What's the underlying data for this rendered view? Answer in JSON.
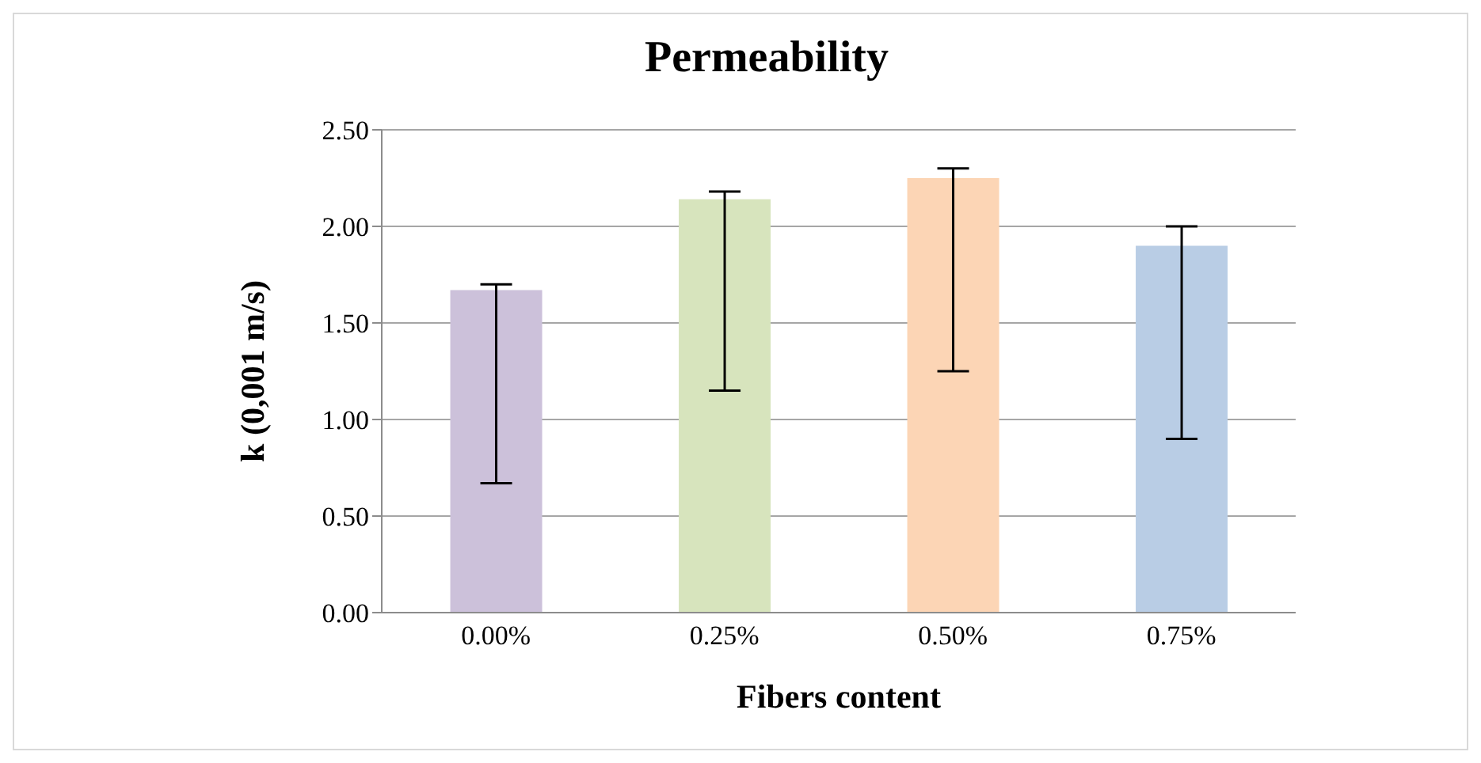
{
  "chart_data": {
    "type": "bar",
    "title": "Permeability",
    "xlabel": "Fibers content",
    "ylabel": "k (0,001 m/s)",
    "categories": [
      "0.00%",
      "0.25%",
      "0.50%",
      "0.75%"
    ],
    "values": [
      1.67,
      2.14,
      2.25,
      1.9
    ],
    "colors": [
      "#ccc1da",
      "#d7e4bd",
      "#fcd5b5",
      "#b9cde5"
    ],
    "errors": [
      [
        0.67,
        1.7
      ],
      [
        1.15,
        2.18
      ],
      [
        1.25,
        2.3
      ],
      [
        0.9,
        2.0
      ]
    ],
    "ylim": [
      0,
      2.5
    ],
    "yticks": [
      {
        "value": 0,
        "label": "0.00"
      },
      {
        "value": 0.5,
        "label": "0.50"
      },
      {
        "value": 1,
        "label": "1.00"
      },
      {
        "value": 1.5,
        "label": "1.50"
      },
      {
        "value": 2,
        "label": "2.00"
      },
      {
        "value": 2.5,
        "label": "2.50"
      }
    ],
    "grid": "y",
    "legend": false
  }
}
